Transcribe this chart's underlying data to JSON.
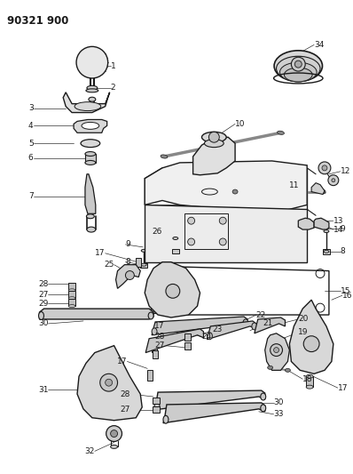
{
  "title": "90321 900",
  "bg_color": "#ffffff",
  "fg_color": "#1a1a1a",
  "figsize": [
    3.98,
    5.33
  ],
  "dpi": 100
}
